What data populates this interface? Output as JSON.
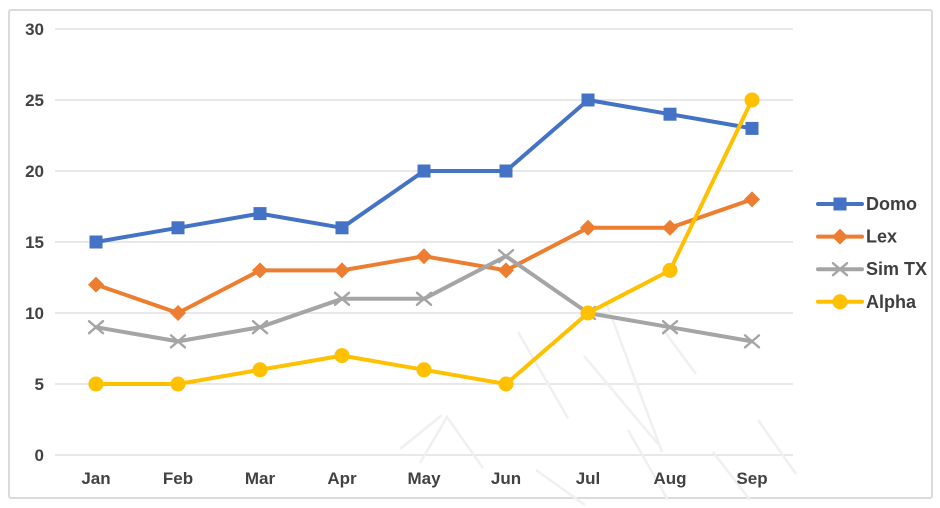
{
  "chart_data": {
    "type": "line",
    "title": "",
    "categories": [
      "Jan",
      "Feb",
      "Mar",
      "Apr",
      "May",
      "Jun",
      "Jul",
      "Aug",
      "Sep"
    ],
    "series": [
      {
        "name": "Domo",
        "color": "#4472C4",
        "marker": "square",
        "values": [
          15,
          16,
          17,
          16,
          20,
          20,
          25,
          24,
          23
        ]
      },
      {
        "name": "Lex",
        "color": "#ED7D31",
        "marker": "diamond",
        "values": [
          12,
          10,
          13,
          13,
          14,
          13,
          16,
          16,
          18
        ]
      },
      {
        "name": "Sim TX",
        "color": "#A5A5A5",
        "marker": "x",
        "values": [
          9,
          8,
          9,
          11,
          11,
          14,
          10,
          9,
          8
        ]
      },
      {
        "name": "Alpha",
        "color": "#FFC000",
        "marker": "circle",
        "values": [
          5,
          5,
          6,
          7,
          6,
          5,
          10,
          13,
          25
        ]
      }
    ],
    "y_ticks": [
      0,
      5,
      10,
      15,
      20,
      25,
      30
    ],
    "ylim": [
      0,
      30
    ],
    "grid": true,
    "legend_position": "right",
    "colors": {
      "gridline": "#D9D9D9",
      "axis_text": "#424242",
      "frame_border": "#DBDBDB",
      "background": "#FFFFFF"
    }
  }
}
